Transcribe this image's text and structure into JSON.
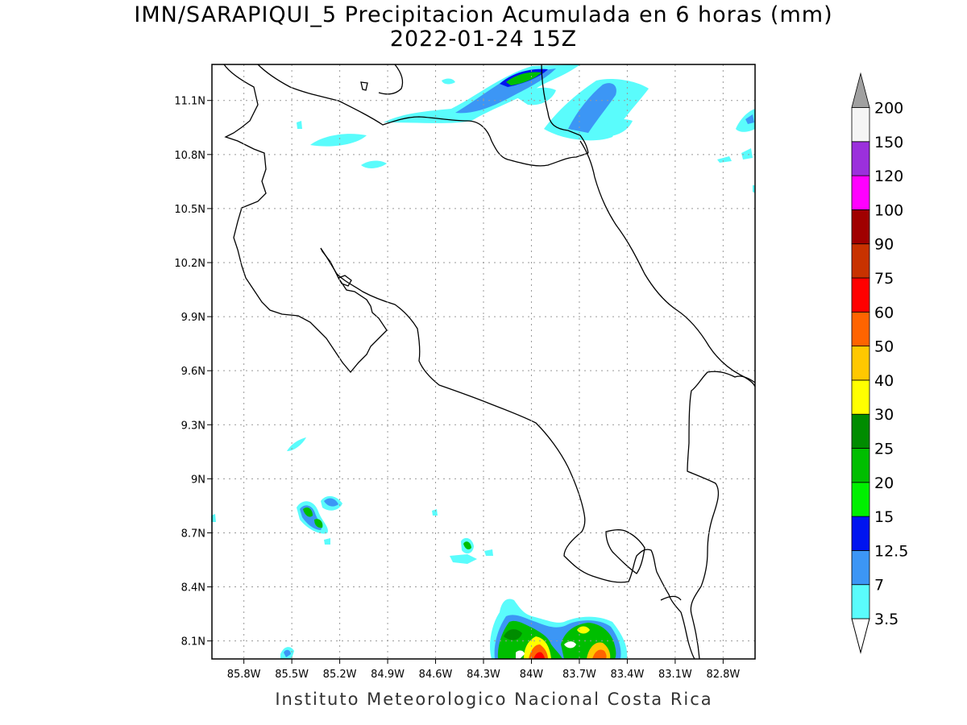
{
  "header": {
    "title": "IMN/SARAPIQUI_5 Precipitacion Acumulada en 6 horas (mm)",
    "subtitle": "2022-01-24 15Z"
  },
  "footer": {
    "credit": "Instituto Meteorologico Nacional Costa Rica"
  },
  "map": {
    "grid": true,
    "lat_range": [
      8.0,
      11.3
    ],
    "lon_range": [
      -86.0,
      -82.6
    ],
    "lat_ticks": [
      {
        "label": "8.1N",
        "value": 8.1
      },
      {
        "label": "8.4N",
        "value": 8.4
      },
      {
        "label": "8.7N",
        "value": 8.7
      },
      {
        "label": "9N",
        "value": 9.0
      },
      {
        "label": "9.3N",
        "value": 9.3
      },
      {
        "label": "9.6N",
        "value": 9.6
      },
      {
        "label": "9.9N",
        "value": 9.9
      },
      {
        "label": "10.2N",
        "value": 10.2
      },
      {
        "label": "10.5N",
        "value": 10.5
      },
      {
        "label": "10.8N",
        "value": 10.8
      },
      {
        "label": "11.1N",
        "value": 11.1
      }
    ],
    "lon_ticks": [
      {
        "label": "85.8W",
        "value": -85.8
      },
      {
        "label": "85.5W",
        "value": -85.5
      },
      {
        "label": "85.2W",
        "value": -85.2
      },
      {
        "label": "84.9W",
        "value": -84.9
      },
      {
        "label": "84.6W",
        "value": -84.6
      },
      {
        "label": "84.3W",
        "value": -84.3
      },
      {
        "label": "84W",
        "value": -84.0
      },
      {
        "label": "83.7W",
        "value": -83.7
      },
      {
        "label": "83.4W",
        "value": -83.4
      },
      {
        "label": "83.1W",
        "value": -83.1
      },
      {
        "label": "82.8W",
        "value": -82.8
      }
    ]
  },
  "colorbar": {
    "levels": [
      {
        "label": "3.5",
        "color": "#5afcfc"
      },
      {
        "label": "7",
        "color": "#3c96f5"
      },
      {
        "label": "12.5",
        "color": "#0014f0"
      },
      {
        "label": "15",
        "color": "#00f000"
      },
      {
        "label": "20",
        "color": "#00be00"
      },
      {
        "label": "25",
        "color": "#008c00"
      },
      {
        "label": "30",
        "color": "#ffff00"
      },
      {
        "label": "40",
        "color": "#ffc800"
      },
      {
        "label": "50",
        "color": "#ff6400"
      },
      {
        "label": "60",
        "color": "#ff0000"
      },
      {
        "label": "75",
        "color": "#c83200"
      },
      {
        "label": "90",
        "color": "#a00000"
      },
      {
        "label": "100",
        "color": "#ff00ff"
      },
      {
        "label": "120",
        "color": "#9b30dc"
      },
      {
        "label": "150",
        "color": "#f5f5f5"
      },
      {
        "label": "200",
        "color": "#a0a0a0"
      }
    ],
    "bottom_arrow_color": "#ffffff"
  }
}
